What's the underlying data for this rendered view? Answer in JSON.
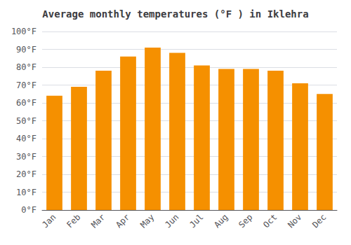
{
  "chart_data": {
    "type": "bar",
    "title": "Average monthly temperatures (°F ) in Iklehra",
    "categories": [
      "Jan",
      "Feb",
      "Mar",
      "Apr",
      "May",
      "Jun",
      "Jul",
      "Aug",
      "Sep",
      "Oct",
      "Nov",
      "Dec"
    ],
    "values": [
      64,
      69,
      78,
      86,
      91,
      88,
      81,
      79,
      79,
      78,
      71,
      65
    ],
    "color": "#F59000",
    "ylim": [
      0,
      100
    ],
    "yticks": [
      {
        "value": 0,
        "label": "0°F"
      },
      {
        "value": 10,
        "label": "10°F"
      },
      {
        "value": 20,
        "label": "20°F"
      },
      {
        "value": 30,
        "label": "30°F"
      },
      {
        "value": 40,
        "label": "40°F"
      },
      {
        "value": 50,
        "label": "50°F"
      },
      {
        "value": 60,
        "label": "60°F"
      },
      {
        "value": 70,
        "label": "70°F"
      },
      {
        "value": 80,
        "label": "80°F"
      },
      {
        "value": 90,
        "label": "90°F"
      },
      {
        "value": 100,
        "label": "100°F"
      }
    ],
    "grid": true
  }
}
